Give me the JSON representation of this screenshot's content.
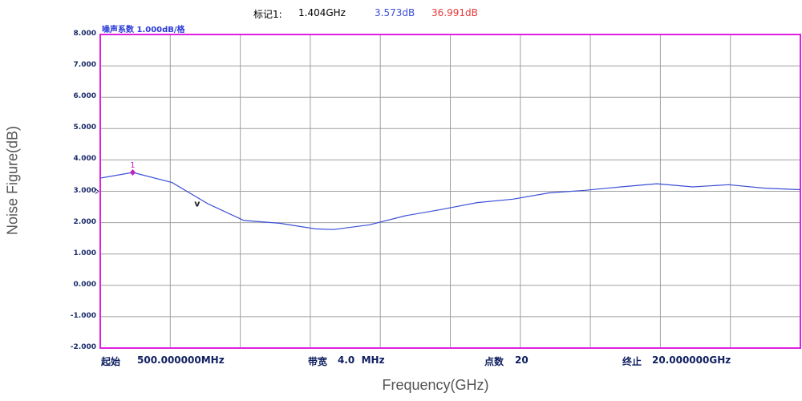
{
  "marker": {
    "label": "标记1:",
    "frequency": "1.404GHz",
    "noise_figure": "3.573dB",
    "gain": "36.991dB",
    "colors": {
      "label": "#222222",
      "frequency": "#222222",
      "noise_figure": "#3d4fd8",
      "gain": "#e83a3a"
    }
  },
  "plot": {
    "scale_label": "噪声系数   1.000dB/格",
    "frame_color": "#e020e0",
    "grid_color": "#a0a0a0",
    "trace_color": "#3b4fd6",
    "marker_color": "#c020c0"
  },
  "footer": {
    "start_label": "起始",
    "start_value": "500.000000MHz",
    "bandwidth_label": "带宽",
    "bandwidth_value": "4.0  MHz",
    "points_label": "点数",
    "points_value": "20",
    "stop_label": "终止",
    "stop_value": "20.000000GHz"
  },
  "chart_data": {
    "type": "line",
    "title": "",
    "xlabel": "Frequency(GHz)",
    "ylabel": "Noise Figure(dB)",
    "ylim": [
      -2.0,
      8.0
    ],
    "xlim": [
      0.5,
      20.0
    ],
    "grid": true,
    "y_ticks": [
      "8.000",
      "7.000",
      "6.000",
      "5.000",
      "4.000",
      "3.000",
      "2.000",
      "1.000",
      "0.000",
      "-1.000",
      "-2.000"
    ],
    "series": [
      {
        "x": [
          0.5,
          1.404,
          2.5,
          3.5,
          4.5,
          5.5,
          6.5,
          7.0,
          8.0,
          9.0,
          10.0,
          11.0,
          12.0,
          13.0,
          14.0,
          15.0,
          16.0,
          17.0,
          18.0,
          19.0,
          20.0
        ],
        "values": [
          3.42,
          3.6,
          3.28,
          2.6,
          2.07,
          1.98,
          1.8,
          1.78,
          1.93,
          2.22,
          2.42,
          2.64,
          2.75,
          2.95,
          3.03,
          3.14,
          3.24,
          3.14,
          3.21,
          3.1,
          3.05
        ]
      }
    ],
    "markers": [
      {
        "id": "1",
        "x": 1.404,
        "y": 3.6
      }
    ],
    "annotations": [
      {
        "text": "v",
        "x": 3.2,
        "y": 2.62
      }
    ]
  }
}
